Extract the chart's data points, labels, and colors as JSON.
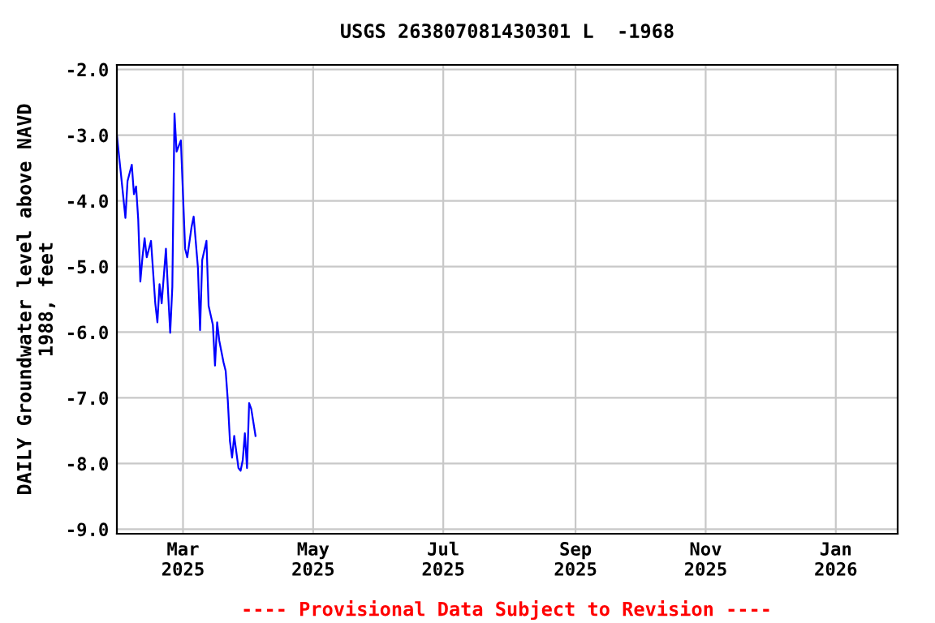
{
  "chart_data": {
    "type": "line",
    "title": "USGS 263807081430301 L  -1968",
    "ylabel": "DAILY Groundwater level above NAVD\n1988, feet",
    "annotations": [
      "---- Provisional Data Subject to Revision ----"
    ],
    "series": [
      {
        "color": "#0000ff",
        "x": [
          "2025-01-29",
          "2025-01-31",
          "2025-02-02",
          "2025-02-03",
          "2025-02-05",
          "2025-02-06",
          "2025-02-07",
          "2025-02-08",
          "2025-02-09",
          "2025-02-10",
          "2025-02-11",
          "2025-02-12",
          "2025-02-14",
          "2025-02-16",
          "2025-02-17",
          "2025-02-18",
          "2025-02-19",
          "2025-02-21",
          "2025-02-22",
          "2025-02-23",
          "2025-02-24",
          "2025-02-25",
          "2025-02-26",
          "2025-02-28",
          "2025-03-01",
          "2025-03-02",
          "2025-03-03",
          "2025-03-05",
          "2025-03-06",
          "2025-03-08",
          "2025-03-09",
          "2025-03-10",
          "2025-03-12",
          "2025-03-13",
          "2025-03-15",
          "2025-03-16",
          "2025-03-17",
          "2025-03-18",
          "2025-03-20",
          "2025-03-21",
          "2025-03-22",
          "2025-03-23",
          "2025-03-24",
          "2025-03-25",
          "2025-03-27",
          "2025-03-28",
          "2025-03-29",
          "2025-03-30",
          "2025-03-31",
          "2025-04-01",
          "2025-04-02",
          "2025-04-04"
        ],
        "values": [
          -3.0,
          -3.62,
          -4.26,
          -3.7,
          -3.45,
          -3.9,
          -3.78,
          -4.28,
          -5.23,
          -4.86,
          -4.57,
          -4.86,
          -4.61,
          -5.56,
          -5.85,
          -5.27,
          -5.56,
          -4.73,
          -5.39,
          -6.01,
          -5.31,
          -2.67,
          -3.25,
          -3.08,
          -3.91,
          -4.73,
          -4.86,
          -4.4,
          -4.24,
          -5.02,
          -5.97,
          -4.9,
          -4.61,
          -5.6,
          -5.89,
          -6.51,
          -5.85,
          -6.13,
          -6.46,
          -6.59,
          -7.04,
          -7.66,
          -7.91,
          -7.58,
          -8.07,
          -8.11,
          -7.95,
          -7.54,
          -8.07,
          -7.08,
          -7.17,
          -7.58
        ]
      }
    ],
    "xlim": [
      "2025-01-29",
      "2026-01-30"
    ],
    "xticks": [
      {
        "value": "2025-03-01",
        "label": "Mar\n2025"
      },
      {
        "value": "2025-05-01",
        "label": "May\n2025"
      },
      {
        "value": "2025-07-01",
        "label": "Jul\n2025"
      },
      {
        "value": "2025-09-01",
        "label": "Sep\n2025"
      },
      {
        "value": "2025-11-01",
        "label": "Nov\n2025"
      },
      {
        "value": "2026-01-01",
        "label": "Jan\n2026"
      }
    ],
    "ylim": [
      -9.07,
      -1.93
    ],
    "yticks": [
      {
        "value": -2,
        "label": "-2.0"
      },
      {
        "value": -3,
        "label": "-3.0"
      },
      {
        "value": -4,
        "label": "-4.0"
      },
      {
        "value": -5,
        "label": "-5.0"
      },
      {
        "value": -6,
        "label": "-6.0"
      },
      {
        "value": -7,
        "label": "-7.0"
      },
      {
        "value": -8,
        "label": "-8.0"
      },
      {
        "value": -9,
        "label": "-9.0"
      }
    ],
    "grid": true
  }
}
